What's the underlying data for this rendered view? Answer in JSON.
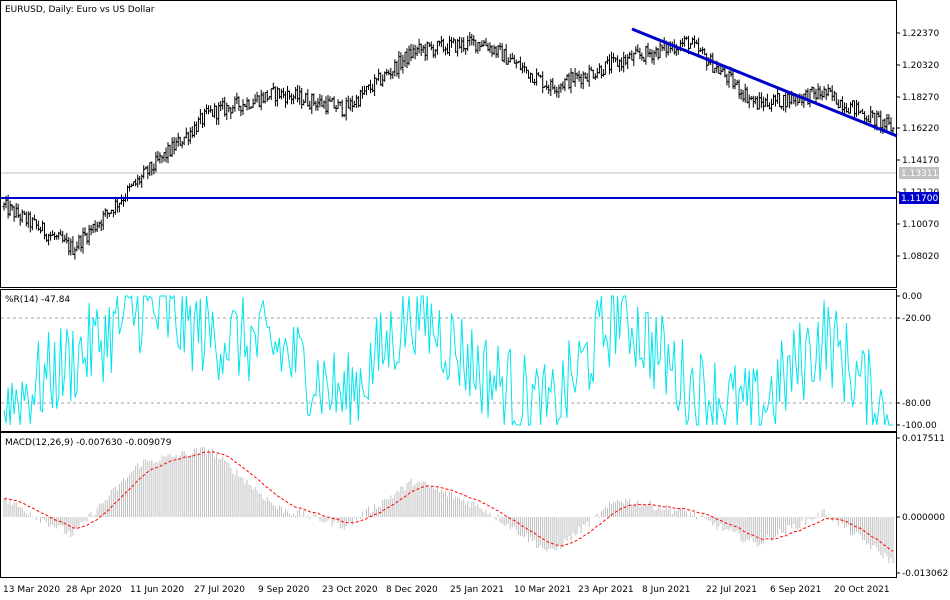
{
  "window": {
    "symbol": "EURUSD",
    "timeframe": "Daily",
    "description": "Euro vs US Dollar",
    "title_text": "EURUSD, Daily: Euro vs US Dollar"
  },
  "colors": {
    "background": "#ffffff",
    "bars": "#000000",
    "grid_border": "#000000",
    "trendline": "#0000cd",
    "support_line": "#0000cd",
    "current_price_line": "#c0c0c0",
    "current_price_badge": "#c0c0c0",
    "support_badge": "#0000cd",
    "wpr_line": "#00e5ee",
    "wpr_levels": "#a0a0a0",
    "macd_hist": "#c0c0c0",
    "macd_signal": "#ff0000"
  },
  "price_panel": {
    "y_ticks": [
      "1.22370",
      "1.20320",
      "1.18270",
      "1.16220",
      "1.14170",
      "1.12120",
      "1.10070",
      "1.08020"
    ],
    "current_price": "1.13311",
    "support_price": "1.11700"
  },
  "wpr_panel": {
    "label": "%R(14) -47.84",
    "y_ticks": [
      "0.00",
      "-20.00",
      "-80.00",
      "-100.00"
    ]
  },
  "macd_panel": {
    "label": "MACD(12,26,9) -0.007630 -0.009079",
    "y_ticks": [
      "0.017511",
      "0.000000",
      "-0.013062"
    ]
  },
  "x_axis": {
    "labels": [
      "13 Mar 2020",
      "28 Apr 2020",
      "11 Jun 2020",
      "27 Jul 2020",
      "9 Sep 2020",
      "23 Oct 2020",
      "8 Dec 2020",
      "25 Jan 2021",
      "10 Mar 2021",
      "23 Apr 2021",
      "8 Jun 2021",
      "22 Jul 2021",
      "6 Sep 2021",
      "20 Oct 2021"
    ]
  },
  "chart_data": {
    "type": "line",
    "title": "EURUSD, Daily: Euro vs US Dollar",
    "x": [
      "13 Mar 2020",
      "28 Apr 2020",
      "11 Jun 2020",
      "27 Jul 2020",
      "9 Sep 2020",
      "23 Oct 2020",
      "8 Dec 2020",
      "25 Jan 2021",
      "10 Mar 2021",
      "23 Apr 2021",
      "8 Jun 2021",
      "22 Jul 2021",
      "6 Sep 2021",
      "20 Oct 2021"
    ],
    "series": [
      {
        "name": "EURUSD",
        "values": [
          1.112,
          1.085,
          1.13,
          1.172,
          1.185,
          1.175,
          1.212,
          1.218,
          1.189,
          1.205,
          1.218,
          1.178,
          1.185,
          1.162
        ]
      },
      {
        "name": "%R(14)",
        "values": [
          -85,
          -50,
          -10,
          -30,
          -40,
          -80,
          -10,
          -60,
          -90,
          -10,
          -70,
          -90,
          -30,
          -100
        ]
      },
      {
        "name": "MACD(12,26,9)",
        "values": [
          0.004,
          -0.004,
          0.012,
          0.015,
          0.002,
          -0.002,
          0.008,
          0.002,
          -0.008,
          0.004,
          0.001,
          -0.006,
          0.001,
          -0.01
        ]
      }
    ],
    "annotations": {
      "current_price": 1.13311,
      "support_level": 1.117,
      "trendline": {
        "start": {
          "x": "Jun 2021",
          "y": 1.23
        },
        "end": {
          "x": "Nov 2021",
          "y": 1.157
        }
      }
    },
    "ylim": [
      1.068,
      1.239
    ]
  }
}
